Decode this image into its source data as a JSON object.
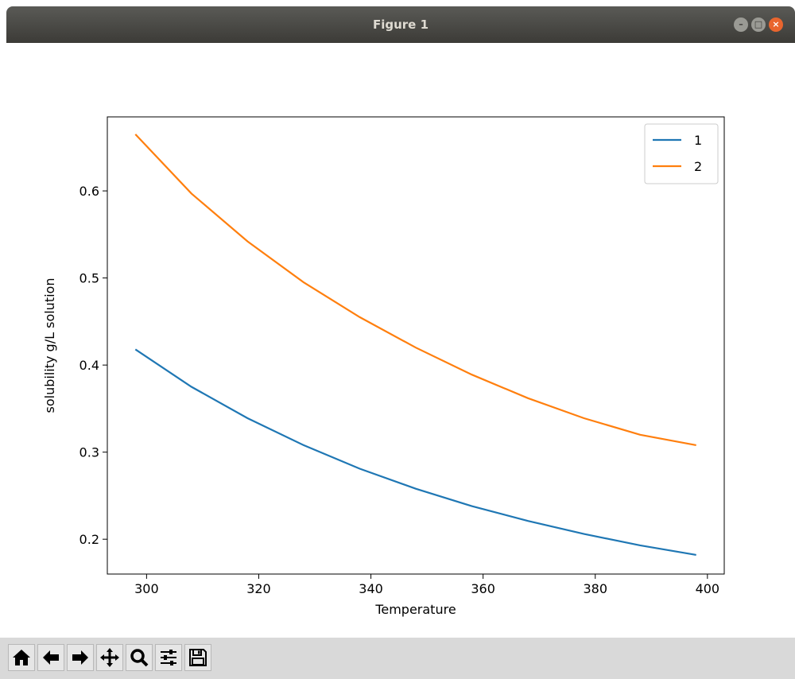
{
  "window": {
    "title": "Figure 1",
    "min_icon": "minimize-icon",
    "max_icon": "maximize-icon",
    "close_icon": "close-icon"
  },
  "toolbar": {
    "buttons": [
      {
        "name": "home",
        "icon": "home-icon"
      },
      {
        "name": "back",
        "icon": "arrow-left-icon"
      },
      {
        "name": "forward",
        "icon": "arrow-right-icon"
      },
      {
        "name": "pan",
        "icon": "move-icon"
      },
      {
        "name": "zoom",
        "icon": "zoom-icon"
      },
      {
        "name": "configure",
        "icon": "sliders-icon"
      },
      {
        "name": "save",
        "icon": "save-icon"
      }
    ]
  },
  "chart_data": {
    "type": "line",
    "xlabel": "Temperature",
    "ylabel": "solubility g/L solution",
    "xlim": [
      293,
      403
    ],
    "ylim": [
      0.16,
      0.685
    ],
    "xticks": [
      300,
      320,
      340,
      360,
      380,
      400
    ],
    "yticks": [
      0.2,
      0.3,
      0.4,
      0.5,
      0.6
    ],
    "xtick_labels": [
      "300",
      "320",
      "340",
      "360",
      "380",
      "400"
    ],
    "ytick_labels": [
      "0.2",
      "0.3",
      "0.4",
      "0.5",
      "0.6"
    ],
    "legend_position": "upper right",
    "grid": false,
    "x": [
      298,
      308,
      318,
      328,
      338,
      348,
      358,
      368,
      378,
      388,
      398
    ],
    "series": [
      {
        "name": "1",
        "color": "#1f77b4",
        "values": [
          0.418,
          0.375,
          0.339,
          0.308,
          0.281,
          0.258,
          0.238,
          0.221,
          0.206,
          0.193,
          0.182
        ]
      },
      {
        "name": "2",
        "color": "#ff7f0e",
        "values": [
          0.665,
          0.597,
          0.542,
          0.495,
          0.455,
          0.42,
          0.389,
          0.362,
          0.339,
          0.32,
          0.308
        ]
      }
    ]
  }
}
